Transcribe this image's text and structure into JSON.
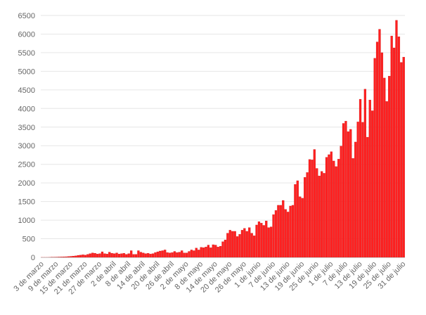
{
  "chart_data": {
    "type": "bar",
    "title": "",
    "xlabel": "",
    "ylabel": "",
    "ylim": [
      0,
      6500
    ],
    "yticks": [
      0,
      500,
      1000,
      1500,
      2000,
      2500,
      3000,
      3500,
      4000,
      4500,
      5000,
      5500,
      6000,
      6500
    ],
    "grid": true,
    "bar_color": "#ff2020",
    "bar_edge_color": "#c81414",
    "x_tick_labels": [
      "3 de marzo",
      "9 de marzo",
      "15 de marzo",
      "21 de marzo",
      "27 de marzo",
      "2 de abril",
      "8 de abril",
      "14 de abril",
      "20 de abril",
      "26 de abril",
      "2 de mayo",
      "8 de mayo",
      "14 de mayo",
      "20 de mayo",
      "26 de mayo",
      "1 de junio",
      "7 de junio",
      "13 de junio",
      "19 de junio",
      "25 de junio",
      "1 de julio",
      "7 de julio",
      "13 de julio",
      "19 de julio",
      "25 de julio",
      "31 de julio"
    ],
    "values": [
      1,
      1,
      1,
      2,
      3,
      5,
      8,
      10,
      12,
      15,
      18,
      22,
      28,
      35,
      40,
      55,
      60,
      70,
      60,
      80,
      100,
      120,
      110,
      90,
      100,
      150,
      100,
      90,
      140,
      110,
      100,
      120,
      90,
      100,
      110,
      80,
      100,
      180,
      80,
      80,
      180,
      140,
      120,
      100,
      110,
      90,
      100,
      130,
      150,
      170,
      180,
      200,
      130,
      120,
      130,
      160,
      130,
      140,
      180,
      120,
      120,
      160,
      200,
      180,
      250,
      200,
      270,
      260,
      280,
      330,
      260,
      340,
      330,
      280,
      300,
      420,
      470,
      650,
      730,
      700,
      700,
      560,
      620,
      730,
      780,
      700,
      800,
      650,
      580,
      870,
      960,
      920,
      860,
      980,
      800,
      820,
      1150,
      1260,
      1400,
      1400,
      1530,
      1290,
      1220,
      1380,
      1400,
      1960,
      2060,
      1630,
      1590,
      2150,
      2280,
      2630,
      2620,
      2900,
      2390,
      2190,
      2310,
      2260,
      2690,
      2760,
      2840,
      2590,
      2440,
      2640,
      2990,
      3600,
      3660,
      3380,
      3440,
      2660,
      3100,
      3640,
      4250,
      3630,
      4520,
      3230,
      4230,
      3940,
      5350,
      5790,
      6130,
      5500,
      4820,
      4190,
      4870,
      5950,
      5630,
      6370,
      5930,
      5240,
      5380
    ]
  }
}
